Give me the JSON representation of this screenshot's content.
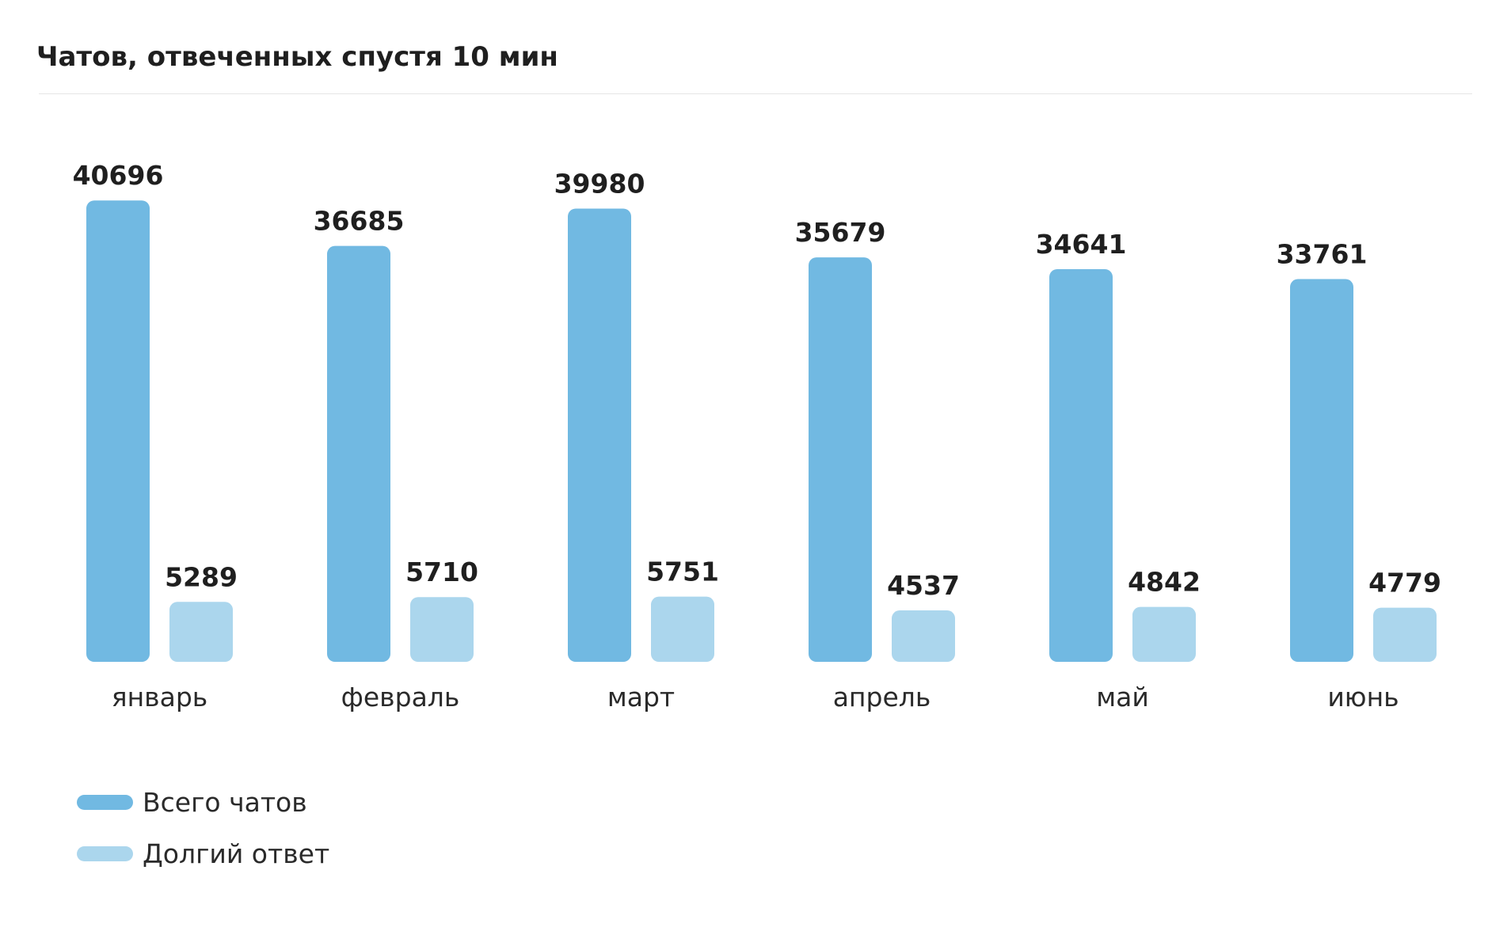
{
  "title": "Чатов, отвеченных спустя 10 мин",
  "colors": {
    "total": "#71b9e2",
    "long": "#abd6ed",
    "value_text": "#1f1f1f",
    "category_text": "#2a2a2a"
  },
  "chart_data": {
    "type": "bar",
    "title": "Чатов, отвеченных спустя 10 мин",
    "categories": [
      "январь",
      "февраль",
      "март",
      "апрель",
      "май",
      "июнь"
    ],
    "series": [
      {
        "name": "Всего чатов",
        "values": [
          40696,
          36685,
          39980,
          35679,
          34641,
          33761
        ]
      },
      {
        "name": "Долгий ответ",
        "values": [
          5289,
          5710,
          5751,
          4537,
          4842,
          4779
        ]
      }
    ],
    "data_labels": true,
    "grid": false,
    "legend": "bottom-left"
  },
  "legend": [
    {
      "label": "Всего чатов"
    },
    {
      "label": "Долгий ответ"
    }
  ]
}
